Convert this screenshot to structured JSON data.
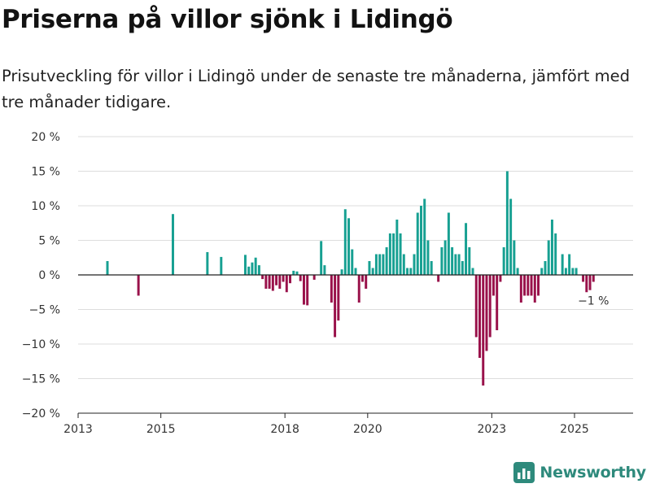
{
  "header": {
    "title": "Priserna på villor sjönk i Lidingö",
    "subtitle": "Prisutveckling för villor i Lidingö under de senaste tre månaderna, jämfört med tre månader tidigare."
  },
  "brand": {
    "name": "Newsworthy",
    "logo_icon": "bar-chart-logo-icon"
  },
  "colors": {
    "positive": "#17a092",
    "negative": "#99114a",
    "grid": "#dddddd",
    "axis": "#222222",
    "brand": "#2e8a7c"
  },
  "chart_data": {
    "type": "bar",
    "x_unit": "month",
    "x_start": "2013-01",
    "x_end": "2026-06",
    "ylim": [
      -20,
      20
    ],
    "y_ticks": [
      20,
      15,
      10,
      5,
      0,
      -5,
      -10,
      -15,
      -20
    ],
    "y_tick_labels": [
      "20 %",
      "15 %",
      "10 %",
      "5 %",
      "0 %",
      "−5 %",
      "−10 %",
      "−15 %",
      "−20 %"
    ],
    "x_ticks": [
      "2013-01",
      "2015-01",
      "2018-01",
      "2020-01",
      "2023-01",
      "2025-01"
    ],
    "x_tick_labels": [
      "2013",
      "2015",
      "2018",
      "2020",
      "2023",
      "2025"
    ],
    "grid": true,
    "annotation": {
      "month": "2025-06",
      "value": -1,
      "text": "−1 %"
    },
    "bars": [
      {
        "month": "2013-09",
        "value": 2
      },
      {
        "month": "2014-06",
        "value": -3
      },
      {
        "month": "2015-04",
        "value": 8.8
      },
      {
        "month": "2016-02",
        "value": 3.3
      },
      {
        "month": "2016-06",
        "value": 2.6
      },
      {
        "month": "2017-01",
        "value": 2.9
      },
      {
        "month": "2017-02",
        "value": 1.2
      },
      {
        "month": "2017-03",
        "value": 1.8
      },
      {
        "month": "2017-04",
        "value": 2.5
      },
      {
        "month": "2017-05",
        "value": 1.4
      },
      {
        "month": "2017-06",
        "value": -0.6
      },
      {
        "month": "2017-07",
        "value": -2
      },
      {
        "month": "2017-08",
        "value": -2
      },
      {
        "month": "2017-09",
        "value": -2.3
      },
      {
        "month": "2017-10",
        "value": -1.5
      },
      {
        "month": "2017-11",
        "value": -2
      },
      {
        "month": "2017-12",
        "value": -1
      },
      {
        "month": "2018-01",
        "value": -2.5
      },
      {
        "month": "2018-02",
        "value": -1.2
      },
      {
        "month": "2018-03",
        "value": 0.6
      },
      {
        "month": "2018-04",
        "value": 0.5
      },
      {
        "month": "2018-05",
        "value": -0.9
      },
      {
        "month": "2018-06",
        "value": -4.3
      },
      {
        "month": "2018-07",
        "value": -4.4
      },
      {
        "month": "2018-09",
        "value": -0.7
      },
      {
        "month": "2018-11",
        "value": 4.9
      },
      {
        "month": "2018-12",
        "value": 1.4
      },
      {
        "month": "2019-02",
        "value": -4
      },
      {
        "month": "2019-03",
        "value": -9
      },
      {
        "month": "2019-04",
        "value": -6.6
      },
      {
        "month": "2019-05",
        "value": 0.8
      },
      {
        "month": "2019-06",
        "value": 9.5
      },
      {
        "month": "2019-07",
        "value": 8.2
      },
      {
        "month": "2019-08",
        "value": 3.7
      },
      {
        "month": "2019-09",
        "value": 1
      },
      {
        "month": "2019-10",
        "value": -4
      },
      {
        "month": "2019-11",
        "value": -1
      },
      {
        "month": "2019-12",
        "value": -2
      },
      {
        "month": "2020-01",
        "value": 2
      },
      {
        "month": "2020-02",
        "value": 1
      },
      {
        "month": "2020-03",
        "value": 3
      },
      {
        "month": "2020-04",
        "value": 3
      },
      {
        "month": "2020-05",
        "value": 3
      },
      {
        "month": "2020-06",
        "value": 4
      },
      {
        "month": "2020-07",
        "value": 6
      },
      {
        "month": "2020-08",
        "value": 6
      },
      {
        "month": "2020-09",
        "value": 8
      },
      {
        "month": "2020-10",
        "value": 6
      },
      {
        "month": "2020-11",
        "value": 3
      },
      {
        "month": "2020-12",
        "value": 1
      },
      {
        "month": "2021-01",
        "value": 1
      },
      {
        "month": "2021-02",
        "value": 3
      },
      {
        "month": "2021-03",
        "value": 9
      },
      {
        "month": "2021-04",
        "value": 10
      },
      {
        "month": "2021-05",
        "value": 11
      },
      {
        "month": "2021-06",
        "value": 5
      },
      {
        "month": "2021-07",
        "value": 2
      },
      {
        "month": "2021-09",
        "value": -1
      },
      {
        "month": "2021-10",
        "value": 4
      },
      {
        "month": "2021-11",
        "value": 5
      },
      {
        "month": "2021-12",
        "value": 9
      },
      {
        "month": "2022-01",
        "value": 4
      },
      {
        "month": "2022-02",
        "value": 3
      },
      {
        "month": "2022-03",
        "value": 3
      },
      {
        "month": "2022-04",
        "value": 2
      },
      {
        "month": "2022-05",
        "value": 7.5
      },
      {
        "month": "2022-06",
        "value": 4
      },
      {
        "month": "2022-07",
        "value": 1
      },
      {
        "month": "2022-08",
        "value": -9
      },
      {
        "month": "2022-09",
        "value": -12
      },
      {
        "month": "2022-10",
        "value": -16
      },
      {
        "month": "2022-11",
        "value": -11
      },
      {
        "month": "2022-12",
        "value": -9
      },
      {
        "month": "2023-01",
        "value": -3
      },
      {
        "month": "2023-02",
        "value": -8
      },
      {
        "month": "2023-03",
        "value": -1
      },
      {
        "month": "2023-04",
        "value": 4
      },
      {
        "month": "2023-05",
        "value": 15
      },
      {
        "month": "2023-06",
        "value": 11
      },
      {
        "month": "2023-07",
        "value": 5
      },
      {
        "month": "2023-08",
        "value": 1
      },
      {
        "month": "2023-09",
        "value": -4
      },
      {
        "month": "2023-10",
        "value": -3
      },
      {
        "month": "2023-11",
        "value": -3
      },
      {
        "month": "2023-12",
        "value": -3
      },
      {
        "month": "2024-01",
        "value": -4
      },
      {
        "month": "2024-02",
        "value": -3
      },
      {
        "month": "2024-03",
        "value": 1
      },
      {
        "month": "2024-04",
        "value": 2
      },
      {
        "month": "2024-05",
        "value": 5
      },
      {
        "month": "2024-06",
        "value": 8
      },
      {
        "month": "2024-07",
        "value": 6
      },
      {
        "month": "2024-09",
        "value": 3
      },
      {
        "month": "2024-10",
        "value": 1
      },
      {
        "month": "2024-11",
        "value": 3
      },
      {
        "month": "2024-12",
        "value": 1
      },
      {
        "month": "2025-01",
        "value": 1
      },
      {
        "month": "2025-03",
        "value": -1
      },
      {
        "month": "2025-04",
        "value": -2.5
      },
      {
        "month": "2025-05",
        "value": -2.2
      },
      {
        "month": "2025-06",
        "value": -1
      }
    ]
  }
}
